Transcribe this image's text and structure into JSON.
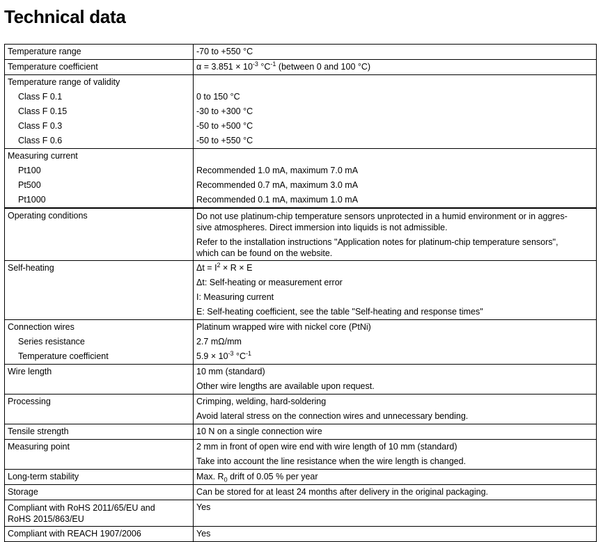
{
  "header": {
    "title": "Technical data"
  },
  "table": {
    "sections": [
      {
        "left": [
          "Temperature range"
        ],
        "right": [
          "-70 to +550 °C"
        ]
      },
      {
        "left": [
          "Temperature coefficient"
        ],
        "right": [
          [
            "α = 3.851 × 10",
            "-3",
            " °C",
            "-1",
            " (between 0 and 100 °C)"
          ]
        ]
      },
      {
        "left": [
          "Temperature range of validity",
          "Class F 0.1",
          "Class F 0.15",
          "Class F 0.3",
          "Class F 0.6"
        ],
        "right": [
          "0 to 150 °C",
          "-30 to +300 °C",
          "-50 to +500 °C",
          "-50 to +550 °C"
        ]
      },
      {
        "left": [
          "Measuring current",
          "Pt100",
          "Pt500",
          "Pt1000"
        ],
        "right": [
          "Recommended 1.0 mA, maximum 7.0 mA",
          "Recommended 0.7 mA, maximum 3.0 mA",
          "Recommended 0.1 mA, maximum 1.0 mA"
        ]
      },
      {
        "left": [
          "Operating conditions"
        ],
        "right": [
          [
            "Do not use platinum-chip temperature sensors unprotected in a humid environment or in aggres-",
            "sive atmospheres. Direct immersion into liquids is not admissible."
          ],
          [
            "Refer to the installation instructions \"Application notes for platinum-chip temperature sensors\",",
            "which can be found on the website."
          ]
        ]
      },
      {
        "left": [
          "Self-heating"
        ],
        "right": [
          [
            "Δt = I",
            "2",
            " × R × E"
          ],
          "Δt: Self-heating or measurement error",
          "I: Measuring current",
          "E: Self-heating coefficient, see the table \"Self-heating and response times\""
        ]
      },
      {
        "left": [
          "Connection wires",
          "Series resistance",
          "Temperature coefficient"
        ],
        "right": [
          "Platinum wrapped wire with nickel core (PtNi)",
          "2.7 mΩ/mm",
          [
            "5.9 × 10",
            "-3",
            " °C",
            "-1"
          ]
        ]
      },
      {
        "left": [
          "Wire length"
        ],
        "right": [
          "10 mm (standard)",
          "Other wire lengths are available upon request."
        ]
      },
      {
        "left": [
          "Processing"
        ],
        "right": [
          "Crimping, welding, hard-soldering",
          "Avoid lateral stress on the connection wires and unnecessary bending."
        ]
      },
      {
        "left": [
          "Tensile strength"
        ],
        "right": [
          "10 N on a single connection wire"
        ]
      },
      {
        "left": [
          "Measuring point"
        ],
        "right": [
          "2 mm in front of open wire end with wire length of 10 mm (standard)",
          "Take into account the line resistance when the wire length is changed."
        ]
      },
      {
        "left": [
          "Long-term stability"
        ],
        "right": [
          [
            "Max. R",
            "0",
            " drift of 0.05 % per year"
          ]
        ]
      },
      {
        "left": [
          "Storage"
        ],
        "right": [
          "Can be stored for at least 24 months after delivery in the original packaging."
        ]
      },
      {
        "left": [
          [
            "Compliant with RoHS 2011/65/EU and",
            "RoHS 2015/863/EU"
          ]
        ],
        "right": [
          "Yes"
        ]
      },
      {
        "left": [
          "Compliant with REACH 1907/2006"
        ],
        "right": [
          "Yes"
        ]
      }
    ]
  }
}
